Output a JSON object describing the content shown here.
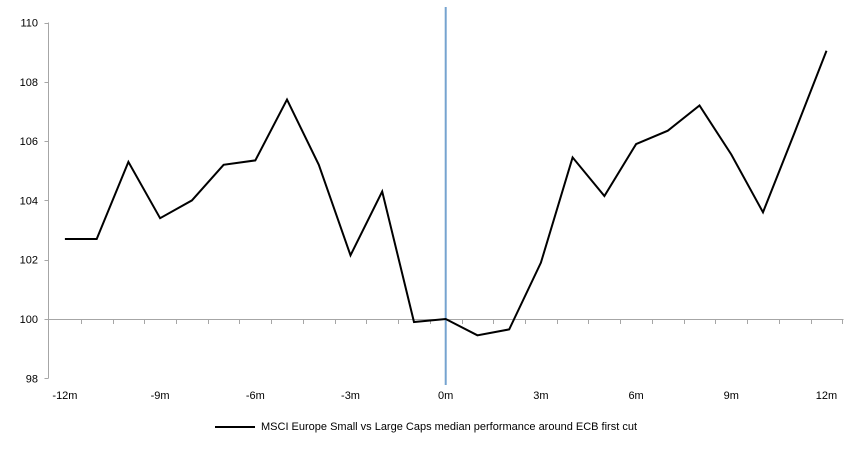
{
  "chart_data": {
    "type": "line",
    "title": "",
    "xlabel": "",
    "ylabel": "",
    "x": [
      -12,
      -11,
      -10,
      -9,
      -8,
      -7,
      -6,
      -5,
      -4,
      -3,
      -2,
      -1,
      0,
      1,
      2,
      3,
      4,
      5,
      6,
      7,
      8,
      9,
      10,
      11,
      12
    ],
    "series": [
      {
        "name": "MSCI Europe Small vs Large Caps median performance around ECB first cut",
        "color": "#000000",
        "values": [
          102.7,
          102.7,
          105.3,
          103.4,
          104.0,
          105.2,
          105.35,
          107.4,
          105.2,
          102.15,
          104.3,
          99.9,
          100.0,
          99.45,
          99.65,
          101.9,
          105.45,
          104.15,
          105.9,
          106.35,
          107.2,
          105.55,
          103.6,
          106.3,
          109.05
        ]
      }
    ],
    "x_axis": {
      "tick_labels": [
        {
          "month": -12,
          "label": "-12m"
        },
        {
          "month": -9,
          "label": "-9m"
        },
        {
          "month": -6,
          "label": "-6m"
        },
        {
          "month": -3,
          "label": "-3m"
        },
        {
          "month": 0,
          "label": "0m"
        },
        {
          "month": 3,
          "label": "3m"
        },
        {
          "month": 6,
          "label": "6m"
        },
        {
          "month": 9,
          "label": "9m"
        },
        {
          "month": 12,
          "label": "12m"
        }
      ],
      "crosses_at": 100
    },
    "y_axis": {
      "ticks": [
        98,
        100,
        102,
        104,
        106,
        108,
        110
      ],
      "min": 98,
      "max": 110
    },
    "event_line": {
      "x": 0,
      "color": "#75a3cf"
    },
    "axis_color": "#a6a6a6",
    "grid": false,
    "legend": {
      "position": "bottom",
      "swatch_color": "#000000",
      "label": "MSCI Europe Small vs Large Caps median performance around ECB first cut"
    }
  }
}
